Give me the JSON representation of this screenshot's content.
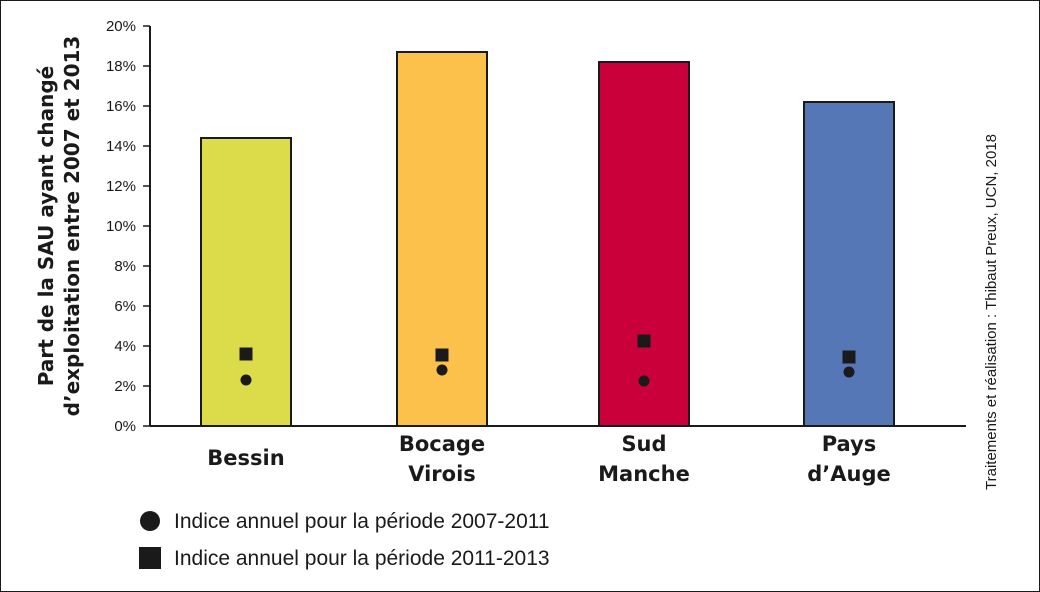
{
  "chart_data": {
    "type": "bar",
    "categories": [
      [
        "Bessin"
      ],
      [
        "Bocage",
        "Virois"
      ],
      [
        "Sud",
        "Manche"
      ],
      [
        "Pays",
        "d’Auge"
      ]
    ],
    "bar_colors": [
      "#dcdc4a",
      "#fcc14a",
      "#c9003a",
      "#5677b5"
    ],
    "values": [
      14.4,
      18.7,
      18.2,
      16.2
    ],
    "markers": [
      {
        "name": "Indice annuel pour la période 2007-2011",
        "symbol": "circle",
        "values": [
          2.3,
          2.8,
          2.25,
          2.7
        ]
      },
      {
        "name": "Indice annuel pour la période 2011-2013",
        "symbol": "square",
        "values": [
          3.6,
          3.55,
          4.25,
          3.45
        ]
      }
    ],
    "ylabel": [
      "Part de la SAU ayant changé",
      "d’exploitation entre 2007 et 2013"
    ],
    "yticks": [
      "0%",
      "2%",
      "4%",
      "6%",
      "8%",
      "10%",
      "12%",
      "14%",
      "16%",
      "18%",
      "20%"
    ],
    "ylim": [
      0,
      20
    ],
    "grid": false,
    "legend": "bottom-left"
  },
  "credit": "Traitements et réalisation : Thibaut Preux, UCN, 2018"
}
